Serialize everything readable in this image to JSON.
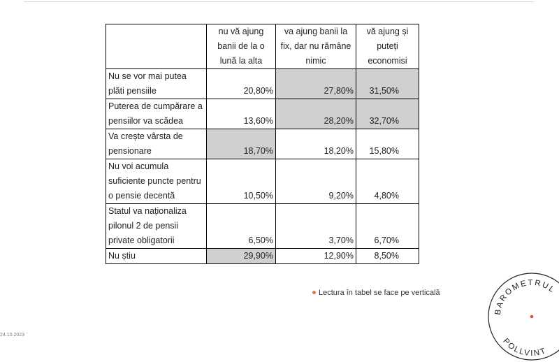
{
  "table": {
    "headers": [
      "",
      "nu vă ajung banii de la o lună la alta",
      "va ajung banii la fix, dar nu rămâne nimic",
      "vă ajung și puteți economisi"
    ],
    "rows": [
      {
        "label": "Nu se vor mai putea plăti pensiile",
        "values": [
          "20,80%",
          "27,80%",
          "31,50%"
        ],
        "shaded": [
          false,
          true,
          true
        ]
      },
      {
        "label": "Puterea de cumpărare a pensiilor va scădea",
        "values": [
          "13,60%",
          "28,20%",
          "32,70%"
        ],
        "shaded": [
          false,
          true,
          true
        ]
      },
      {
        "label": "Va crește vârsta de pensionare",
        "values": [
          "18,70%",
          "18,20%",
          "15,80%"
        ],
        "shaded": [
          true,
          false,
          false
        ]
      },
      {
        "label": "Nu voi acumula suficiente puncte pentru o pensie decentă",
        "values": [
          "10,50%",
          "9,20%",
          "4,80%"
        ],
        "shaded": [
          false,
          false,
          false
        ]
      },
      {
        "label": "Statul va naționaliza pilonul 2 de pensii private obligatorii",
        "values": [
          "6,50%",
          "3,70%",
          "6,70%"
        ],
        "shaded": [
          false,
          false,
          false
        ]
      },
      {
        "label": "Nu știu",
        "values": [
          "29,90%",
          "12,90%",
          "8,50%"
        ],
        "shaded": [
          true,
          false,
          false
        ]
      }
    ]
  },
  "note": {
    "text": "Lectura în tabel se face pe verticală",
    "bullet_color": "#e8734a"
  },
  "seal": {
    "text": "BAROMETRUL POLLVINT",
    "dot_color": "#e84c3d"
  },
  "corner_text": "24.10.2023"
}
